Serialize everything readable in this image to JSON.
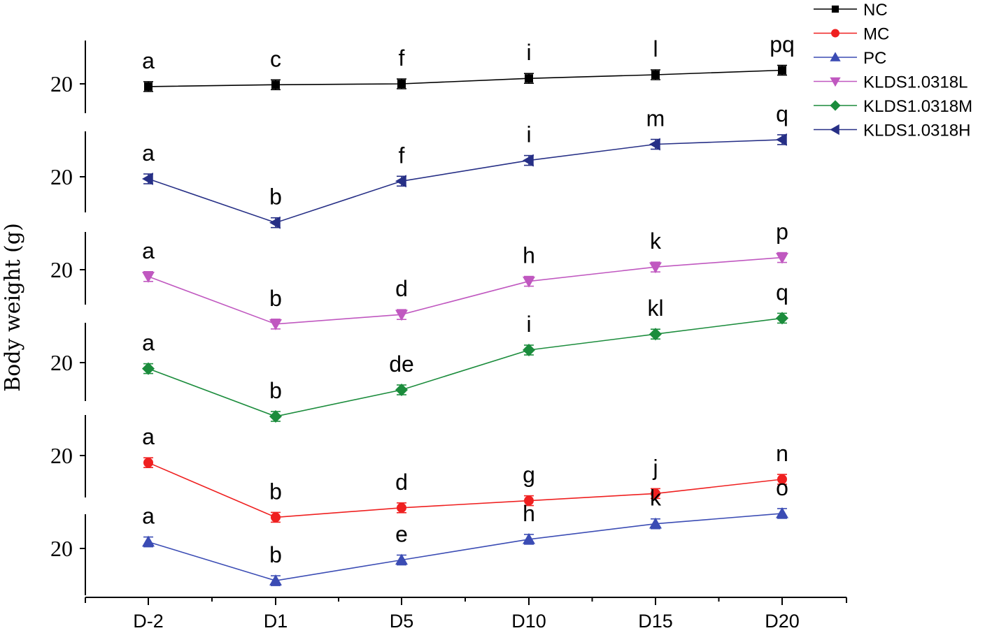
{
  "chart_data": {
    "type": "line",
    "ylabel": "Body weight (g)",
    "categories": [
      "D-2",
      "D1",
      "D5",
      "D10",
      "D15",
      "D20"
    ],
    "panel_order": [
      "NC",
      "KLDS1.0318H",
      "KLDS1.0318L",
      "KLDS1.0318M",
      "MC",
      "PC"
    ],
    "panel_y_tick": "20",
    "series": [
      {
        "name": "NC",
        "color": "#000000",
        "marker": "square",
        "values": [
          19.7,
          19.9,
          20.0,
          20.6,
          21.0,
          21.5
        ],
        "error": [
          0.35,
          0.35,
          0.35,
          0.35,
          0.35,
          0.35
        ],
        "labels": [
          "a",
          "c",
          "f",
          "i",
          "l",
          "pq"
        ]
      },
      {
        "name": "KLDS1.0318H",
        "color": "#262f86",
        "marker": "triangle-left",
        "values": [
          20.0,
          18.1,
          19.9,
          20.8,
          21.5,
          21.7
        ],
        "error": [
          0.35,
          0.35,
          0.35,
          0.35,
          0.35,
          0.35
        ],
        "labels": [
          "a",
          "b",
          "f",
          "i",
          "m",
          "q"
        ]
      },
      {
        "name": "KLDS1.0318L",
        "color": "#c058c0",
        "marker": "triangle-down",
        "values": [
          19.8,
          17.8,
          18.2,
          19.6,
          20.2,
          20.6
        ],
        "error": [
          0.35,
          0.35,
          0.35,
          0.35,
          0.35,
          0.35
        ],
        "labels": [
          "a",
          "b",
          "d",
          "h",
          "k",
          "p"
        ]
      },
      {
        "name": "KLDS1.0318M",
        "color": "#1b8c3c",
        "marker": "diamond",
        "values": [
          19.8,
          18.0,
          19.0,
          20.5,
          21.1,
          21.7
        ],
        "error": [
          0.35,
          0.35,
          0.35,
          0.35,
          0.35,
          0.35
        ],
        "labels": [
          "a",
          "b",
          "de",
          "i",
          "kl",
          "q"
        ]
      },
      {
        "name": "MC",
        "color": "#ef2020",
        "marker": "circle",
        "values": [
          19.7,
          17.4,
          17.8,
          18.1,
          18.4,
          19.0
        ],
        "error": [
          0.35,
          0.35,
          0.35,
          0.35,
          0.35,
          0.35
        ],
        "labels": [
          "a",
          "b",
          "d",
          "g",
          "j",
          "n"
        ]
      },
      {
        "name": "PC",
        "color": "#3b4cb4",
        "marker": "triangle-up",
        "values": [
          20.2,
          18.7,
          19.5,
          20.3,
          20.9,
          21.3
        ],
        "error": [
          0.35,
          0.35,
          0.35,
          0.35,
          0.35,
          0.35
        ],
        "labels": [
          "a",
          "b",
          "e",
          "h",
          "k",
          "o"
        ]
      }
    ],
    "legend": {
      "position": "top-right",
      "order": [
        "NC",
        "MC",
        "PC",
        "KLDS1.0318L",
        "KLDS1.0318M",
        "KLDS1.0318H"
      ]
    }
  }
}
